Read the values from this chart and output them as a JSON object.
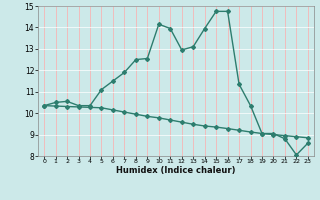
{
  "title": "",
  "xlabel": "Humidex (Indice chaleur)",
  "bg_color": "#cce9e9",
  "grid_color_major_v": "#ffaaaa",
  "grid_color_major_h": "#ffffff",
  "line_color": "#2d7d6e",
  "xlim": [
    0,
    23
  ],
  "ylim": [
    8,
    15
  ],
  "xtick_labels": [
    "0",
    "1",
    "2",
    "3",
    "4",
    "5",
    "6",
    "7",
    "8",
    "9",
    "10",
    "11",
    "12",
    "13",
    "14",
    "15",
    "16",
    "17",
    "18",
    "19",
    "20",
    "21",
    "22",
    "23"
  ],
  "yticks": [
    8,
    9,
    10,
    11,
    12,
    13,
    14,
    15
  ],
  "line1_x": [
    0,
    1,
    2,
    3,
    4,
    5,
    6,
    7,
    8,
    9,
    10,
    11,
    12,
    13,
    14,
    15,
    16,
    17,
    18,
    19,
    20,
    21,
    22,
    23
  ],
  "line1_y": [
    10.35,
    10.5,
    10.55,
    10.35,
    10.35,
    11.1,
    11.5,
    11.9,
    12.5,
    12.55,
    14.15,
    13.95,
    12.95,
    13.1,
    13.95,
    14.75,
    14.75,
    11.35,
    10.35,
    9.05,
    9.05,
    8.8,
    8.05,
    8.6
  ],
  "line2_x": [
    0,
    1,
    2,
    3,
    4,
    5,
    6,
    7,
    8,
    9,
    10,
    11,
    12,
    13,
    14,
    15,
    16,
    17,
    18,
    19,
    20,
    21,
    22,
    23
  ],
  "line2_y": [
    10.35,
    10.33,
    10.31,
    10.29,
    10.27,
    10.25,
    10.15,
    10.05,
    9.95,
    9.85,
    9.78,
    9.68,
    9.58,
    9.48,
    9.4,
    9.35,
    9.28,
    9.2,
    9.12,
    9.05,
    9.0,
    8.95,
    8.9,
    8.85
  ],
  "marker_size": 2.0,
  "linewidth": 1.0
}
